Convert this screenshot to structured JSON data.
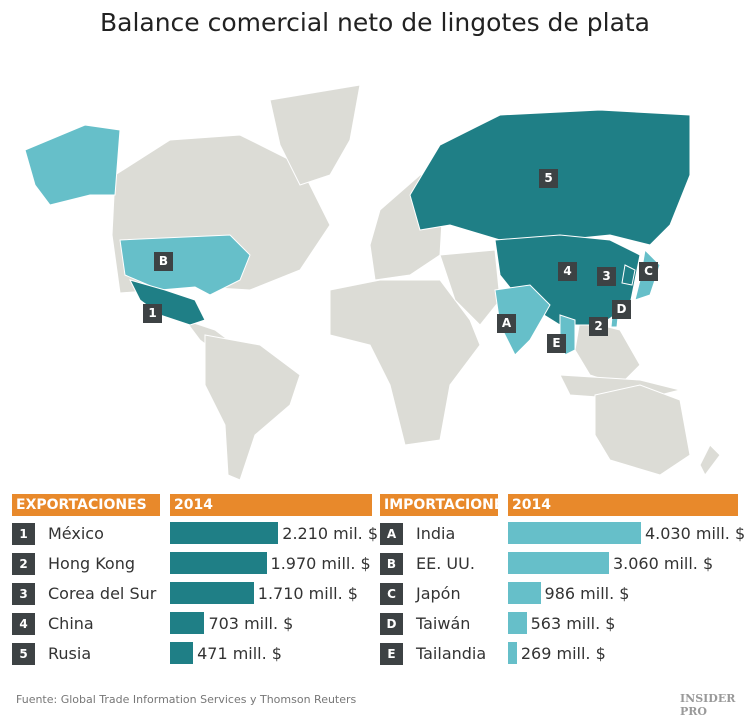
{
  "title": "Balance comercial neto de lingotes de plata",
  "colors": {
    "exports": "#1f7f86",
    "imports": "#66bfc9",
    "land": "#dcdcd6",
    "header": "#e8892b",
    "badge": "#3d4244"
  },
  "map": {
    "markers": [
      "1",
      "2",
      "3",
      "4",
      "5",
      "A",
      "B",
      "C",
      "D",
      "E"
    ]
  },
  "chart_data": [
    {
      "type": "bar",
      "orientation": "horizontal",
      "header": "EXPORTACIONES",
      "year": "2014",
      "unit": "mill. $",
      "badges": [
        "1",
        "2",
        "3",
        "4",
        "5"
      ],
      "categories": [
        "México",
        "Hong Kong",
        "Corea del Sur",
        "China",
        "Rusia"
      ],
      "values": [
        2210,
        1970,
        1710,
        703,
        471
      ],
      "labels": [
        "2.210 mil. $",
        "1.970 mill. $",
        "1.710 mill. $",
        "703 mill. $",
        "471 mill. $"
      ],
      "color": "#1f7f86"
    },
    {
      "type": "bar",
      "orientation": "horizontal",
      "header": "IMPORTACIONES",
      "year": "2014",
      "unit": "mill. $",
      "badges": [
        "A",
        "B",
        "C",
        "D",
        "E"
      ],
      "categories": [
        "India",
        "EE. UU.",
        "Japón",
        "Taiwán",
        "Tailandia"
      ],
      "values": [
        4030,
        3060,
        986,
        563,
        269
      ],
      "labels": [
        "4.030 mill. $",
        "3.060 mill. $",
        "986 mill. $",
        "563 mill. $",
        "269 mill. $"
      ],
      "color": "#66bfc9"
    }
  ],
  "source": "Fuente: Global Trade Information Services y Thomson Reuters",
  "logo": "INSIDER PRO"
}
